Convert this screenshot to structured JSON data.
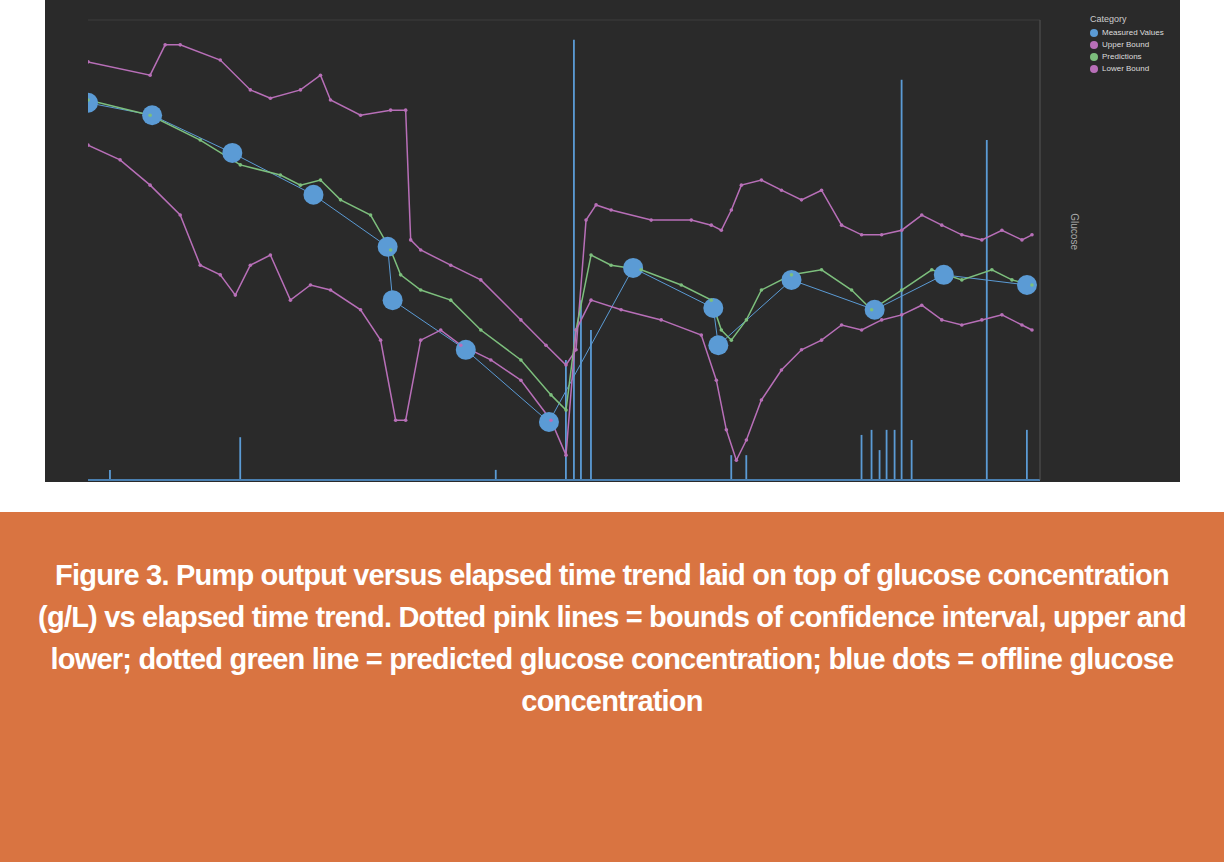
{
  "chart_data": {
    "type": "line",
    "ylabel": "Glucose",
    "legend_title": "Category",
    "legend": "top-right",
    "grid": true,
    "tick_labels": false,
    "xlim": [
      0,
      950
    ],
    "xticks": [
      0,
      950
    ],
    "ylim": [
      0,
      100
    ],
    "yticks": [
      0,
      10,
      20,
      30,
      40,
      50,
      60,
      70,
      80,
      90,
      100
    ],
    "y2lim": [
      0,
      100
    ],
    "y2ticks": [
      0,
      100
    ],
    "caption": "Figure 3. Pump output versus elapsed time trend laid on top of glucose concentration (g/L) vs elapsed time trend. Dotted pink lines = bounds of confidence interval, upper and lower; dotted green line = predicted glucose concentration; blue dots = offline glucose concentration",
    "series": [
      {
        "name": "Measured Values",
        "color": "#5b9bd5",
        "type": "line",
        "marker": "circle",
        "line_style": "solid",
        "x": [
          0,
          64,
          144,
          225,
          299,
          304,
          377,
          460,
          544,
          624,
          629,
          702,
          785,
          854,
          937
        ],
        "values": [
          82.0,
          79.3,
          71.1,
          62.0,
          50.7,
          39.1,
          28.3,
          12.6,
          46.1,
          37.4,
          29.3,
          43.5,
          37.0,
          44.6,
          42.4
        ]
      },
      {
        "name": "Upper Bound",
        "color": "#b86fb8",
        "type": "line",
        "marker": "point",
        "line_style": "dotted",
        "x": [
          0,
          62,
          77,
          92,
          132,
          162,
          182,
          212,
          232,
          242,
          272,
          302,
          317,
          322,
          332,
          362,
          392,
          432,
          457,
          477,
          487,
          497,
          507,
          522,
          562,
          602,
          622,
          632,
          642,
          652,
          672,
          692,
          712,
          732,
          752,
          772,
          792,
          812,
          832,
          852,
          872,
          892,
          912,
          932,
          942
        ],
        "values": [
          90.9,
          88.0,
          94.6,
          94.6,
          91.3,
          84.8,
          83.0,
          84.8,
          88.0,
          82.6,
          79.3,
          80.4,
          80.4,
          52.2,
          50.0,
          46.7,
          43.5,
          34.8,
          29.3,
          25.0,
          28.3,
          56.5,
          59.8,
          58.7,
          56.5,
          56.5,
          55.4,
          54.3,
          58.7,
          64.1,
          65.2,
          63.0,
          60.9,
          63.0,
          55.4,
          53.3,
          53.3,
          54.3,
          57.6,
          55.4,
          53.3,
          52.2,
          54.3,
          52.2,
          53.3
        ]
      },
      {
        "name": "Predictions",
        "color": "#7dbf7d",
        "type": "line",
        "marker": "point",
        "line_style": "dotted",
        "x": [
          0,
          62,
          112,
          152,
          192,
          212,
          232,
          252,
          282,
          302,
          312,
          332,
          362,
          392,
          432,
          462,
          477,
          487,
          502,
          522,
          552,
          592,
          622,
          632,
          642,
          657,
          672,
          702,
          732,
          762,
          782,
          812,
          842,
          872,
          902,
          922,
          942
        ],
        "values": [
          82.6,
          79.3,
          73.9,
          68.5,
          66.3,
          64.1,
          65.2,
          60.9,
          57.6,
          50.0,
          44.6,
          41.3,
          39.1,
          32.6,
          26.1,
          18.5,
          15.2,
          32.6,
          48.9,
          46.7,
          45.7,
          42.4,
          39.1,
          32.6,
          30.4,
          34.8,
          41.3,
          44.6,
          45.7,
          41.3,
          37.0,
          41.3,
          45.7,
          43.5,
          45.7,
          43.5,
          42.4
        ]
      },
      {
        "name": "Lower Bound",
        "color": "#b86fb8",
        "type": "line",
        "marker": "point",
        "line_style": "dotted",
        "x": [
          0,
          32,
          62,
          92,
          112,
          132,
          147,
          162,
          182,
          202,
          222,
          242,
          272,
          292,
          307,
          317,
          332,
          352,
          372,
          402,
          432,
          462,
          477,
          487,
          502,
          532,
          572,
          612,
          627,
          637,
          647,
          657,
          672,
          692,
          712,
          732,
          752,
          772,
          792,
          812,
          832,
          852,
          872,
          892,
          912,
          932,
          942
        ],
        "values": [
          72.8,
          69.6,
          64.1,
          57.6,
          46.7,
          44.6,
          40.2,
          46.7,
          48.9,
          39.1,
          42.4,
          41.3,
          37.0,
          30.4,
          13.0,
          13.0,
          30.4,
          32.6,
          29.3,
          26.1,
          21.7,
          13.0,
          5.4,
          32.6,
          39.1,
          37.0,
          34.8,
          31.5,
          21.7,
          10.9,
          4.3,
          8.7,
          17.4,
          23.9,
          28.3,
          30.4,
          33.7,
          32.6,
          34.8,
          35.9,
          38.0,
          34.8,
          33.7,
          34.8,
          35.9,
          33.7,
          32.6
        ]
      },
      {
        "color": "#5b9bd5",
        "type": "bar",
        "axis": "y2",
        "x": [
          22,
          152,
          407,
          477,
          485,
          492,
          502,
          642,
          657,
          772,
          782,
          790,
          797,
          805,
          812,
          822,
          897,
          937
        ],
        "values": [
          2.2,
          9.3,
          2.2,
          26.1,
          95.7,
          39.1,
          32.6,
          5.4,
          5.4,
          9.8,
          10.9,
          6.5,
          10.9,
          10.9,
          87.0,
          8.7,
          73.9,
          10.9
        ]
      }
    ]
  }
}
